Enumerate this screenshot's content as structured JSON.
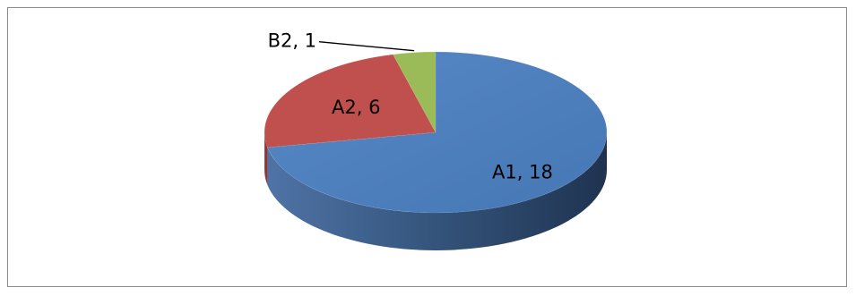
{
  "chart_data": {
    "type": "pie",
    "style": "3d",
    "categories": [
      "A1",
      "A2",
      "B2"
    ],
    "values": [
      18,
      6,
      1
    ],
    "labels": [
      "A1, 18",
      "A2, 6",
      "B2, 1"
    ],
    "colors": [
      "#4f81bd",
      "#c0504d",
      "#9bbb59"
    ],
    "title": "",
    "legend": "none"
  }
}
